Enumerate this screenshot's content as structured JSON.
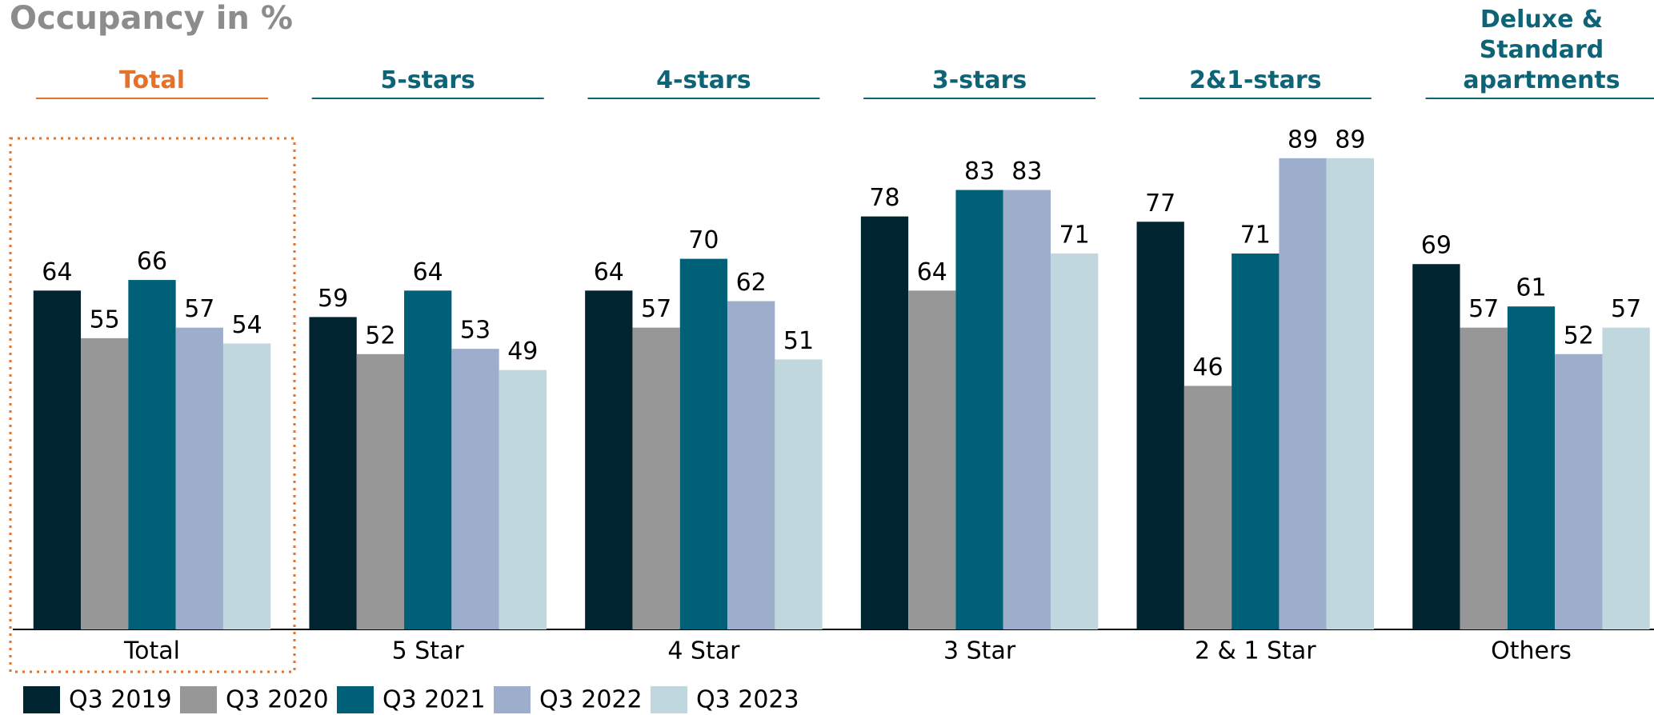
{
  "chart_data": {
    "type": "bar",
    "title": "Occupancy in %",
    "group_headers": [
      "Total",
      "5-stars",
      "4-stars",
      "3-stars",
      "2&1-stars",
      "Deluxe & Standard apartments"
    ],
    "categories": [
      "Total",
      "5 Star",
      "4 Star",
      "3 Star",
      "2 & 1 Star",
      "Others"
    ],
    "series": [
      {
        "name": "Q3 2019",
        "color": "#002530",
        "values": [
          64,
          59,
          64,
          78,
          77,
          69
        ]
      },
      {
        "name": "Q3 2020",
        "color": "#979797",
        "values": [
          55,
          52,
          57,
          64,
          46,
          57
        ]
      },
      {
        "name": "Q3 2021",
        "color": "#006078",
        "values": [
          66,
          64,
          70,
          83,
          71,
          61
        ]
      },
      {
        "name": "Q3 2022",
        "color": "#9daecd",
        "values": [
          57,
          53,
          62,
          83,
          89,
          52
        ]
      },
      {
        "name": "Q3 2023",
        "color": "#c0d8dd",
        "values": [
          54,
          49,
          51,
          71,
          89,
          57
        ]
      }
    ],
    "ylim": [
      0,
      100
    ]
  }
}
